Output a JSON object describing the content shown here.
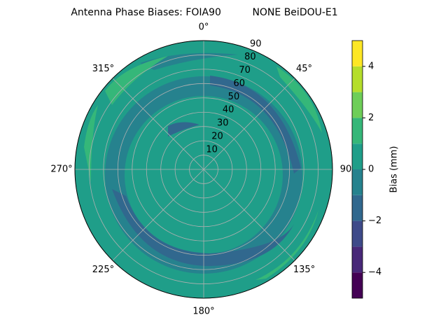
{
  "chart_data": {
    "type": "polar_contour",
    "title": "Antenna Phase Biases: FOIA90          NONE BeiDOU-E1",
    "rlim": [
      0,
      90
    ],
    "rticks": [
      10,
      20,
      30,
      40,
      50,
      60,
      70,
      80,
      90
    ],
    "thetaticks": [
      {
        "value": 0,
        "label": "0°"
      },
      {
        "value": 45,
        "label": "45°"
      },
      {
        "value": 90,
        "label": "90"
      },
      {
        "value": 135,
        "label": "135°"
      },
      {
        "value": 180,
        "label": "180°"
      },
      {
        "value": 225,
        "label": "225°"
      },
      {
        "value": 270,
        "label": "270°"
      },
      {
        "value": 315,
        "label": "315°"
      }
    ],
    "grid": true,
    "colorbar": {
      "label": "Bias (mm)",
      "levels": [
        -5,
        -4,
        -3,
        -2,
        -1,
        0,
        1,
        2,
        3,
        4,
        5
      ],
      "colors": [
        "#440154",
        "#482878",
        "#3e4a89",
        "#31688e",
        "#26828e",
        "#1f9e89",
        "#35b779",
        "#6ece58",
        "#b5de2b",
        "#fde725"
      ],
      "ylim": [
        -5,
        5
      ],
      "yticks": [
        {
          "value": -4,
          "label": "−4"
        },
        {
          "value": -2,
          "label": "−2"
        },
        0,
        2,
        4
      ]
    }
  }
}
